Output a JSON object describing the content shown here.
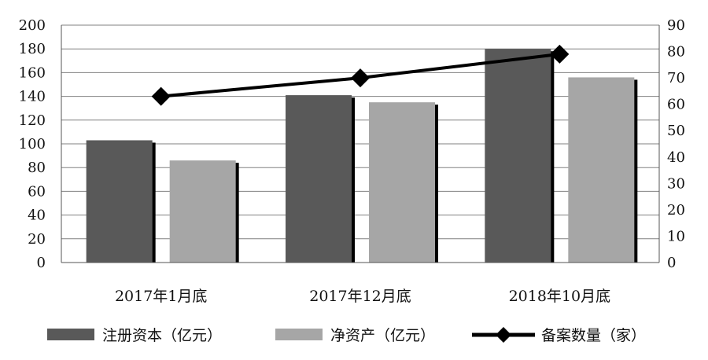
{
  "chart_data": {
    "type": "bar",
    "categories": [
      "2017年1月底",
      "2017年12月底",
      "2018年10月底"
    ],
    "series": [
      {
        "name": "注册资本（亿元）",
        "type": "bar",
        "axis": "left",
        "color": "#595959",
        "values": [
          103,
          141,
          180
        ]
      },
      {
        "name": "净资产（亿元）",
        "type": "bar",
        "axis": "left",
        "color": "#a6a6a6",
        "values": [
          86,
          135,
          156
        ]
      },
      {
        "name": "备案数量（家）",
        "type": "line",
        "axis": "right",
        "color": "#000000",
        "marker": "diamond",
        "values": [
          63,
          70,
          79
        ]
      }
    ],
    "y_left": {
      "min": 0,
      "max": 200,
      "step": 20,
      "ticks": [
        "0",
        "20",
        "40",
        "60",
        "80",
        "100",
        "120",
        "140",
        "160",
        "180",
        "200"
      ]
    },
    "y_right": {
      "min": 0,
      "max": 90,
      "step": 10,
      "ticks": [
        "0",
        "10",
        "20",
        "30",
        "40",
        "50",
        "60",
        "70",
        "80",
        "90"
      ]
    },
    "grid": true,
    "legend_position": "bottom"
  }
}
